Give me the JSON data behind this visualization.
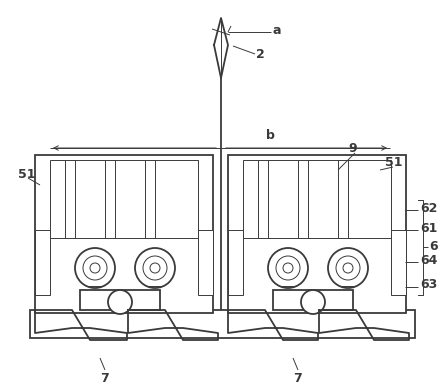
{
  "bg_color": "#ffffff",
  "line_color": "#3a3a3a",
  "lw_main": 1.3,
  "lw_thin": 0.7,
  "figsize": [
    4.43,
    3.9
  ],
  "dpi": 100
}
